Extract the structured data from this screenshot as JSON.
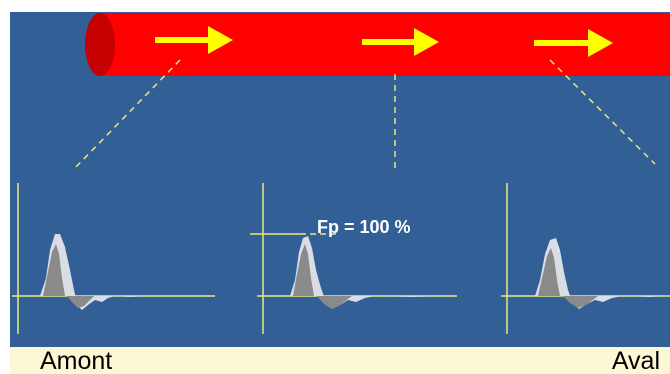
{
  "colors": {
    "background": "#335f97",
    "vessel": "#ff0000",
    "vessel_end": "#c40000",
    "arrow": "#ffff00",
    "guide_lines": "#e8e87a",
    "waveform_envelope": "#d9dde5",
    "waveform_core": "#8a8a8a",
    "bottom_band": "#fcf8d4"
  },
  "annotation": {
    "fp": "Fp = 100 %"
  },
  "labels": {
    "left": "Amont",
    "right": "Aval"
  },
  "icons": {
    "flow_arrow": "right-arrow-icon"
  }
}
